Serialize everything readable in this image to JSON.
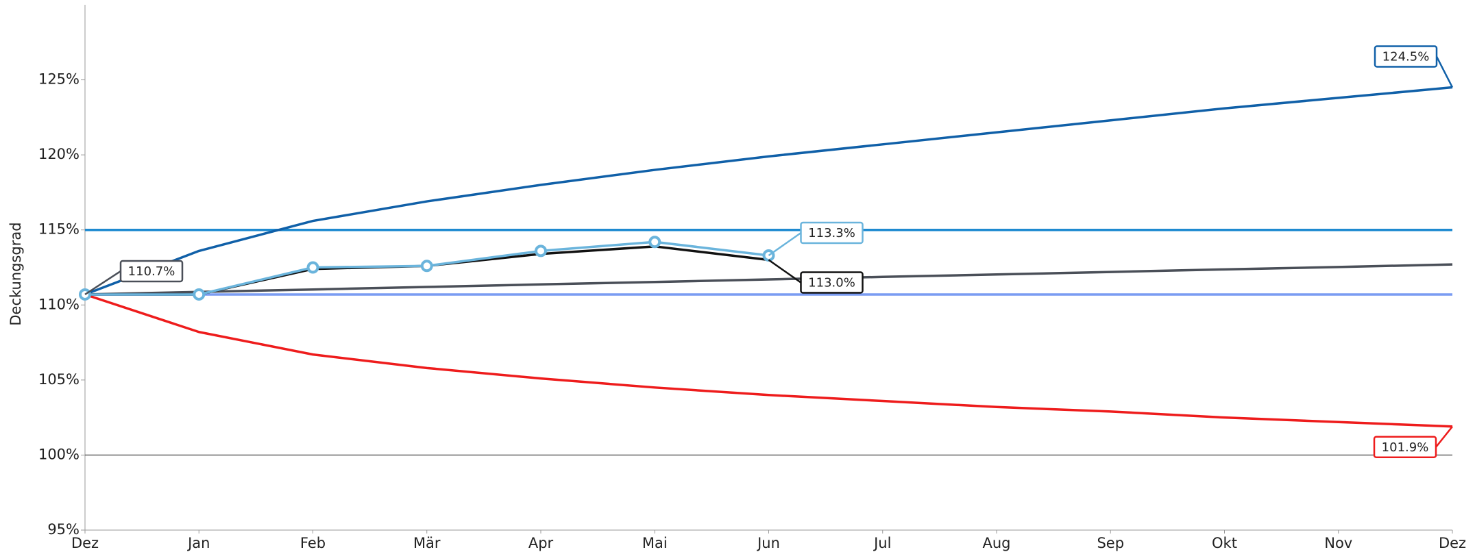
{
  "chart_data": {
    "type": "line",
    "y_label": "Deckungsgrad",
    "categories": [
      "Dez",
      "Jan",
      "Feb",
      "Mär",
      "Apr",
      "Mai",
      "Jun",
      "Jul",
      "Aug",
      "Sep",
      "Okt",
      "Nov",
      "Dez"
    ],
    "ylim": [
      95,
      130
    ],
    "yticks": [
      {
        "value": 95,
        "label": "95%"
      },
      {
        "value": 100,
        "label": "100%"
      },
      {
        "value": 105,
        "label": "105%"
      },
      {
        "value": 110,
        "label": "110%"
      },
      {
        "value": 115,
        "label": "115%"
      },
      {
        "value": 120,
        "label": "120%"
      },
      {
        "value": 125,
        "label": "125%"
      }
    ],
    "reference_lines": [
      {
        "value": 115,
        "color": "#1e8ad0"
      },
      {
        "value": 110.7,
        "color": "#7a9cf2"
      },
      {
        "value": 100,
        "color": "#555555"
      }
    ],
    "series": [
      {
        "color": "#1060a8",
        "values": [
          110.7,
          113.6,
          115.6,
          116.9,
          118.0,
          119.0,
          119.9,
          120.7,
          121.5,
          122.3,
          123.1,
          123.8,
          124.5
        ],
        "value_labels": [
          null,
          null,
          null,
          null,
          null,
          null,
          null,
          null,
          null,
          null,
          null,
          null,
          "124.5%"
        ]
      },
      {
        "color": "#ee1c1c",
        "values": [
          110.7,
          108.2,
          106.7,
          105.8,
          105.1,
          104.5,
          104.0,
          103.6,
          103.2,
          102.9,
          102.5,
          102.2,
          101.9
        ],
        "value_labels": [
          null,
          null,
          null,
          null,
          null,
          null,
          null,
          null,
          null,
          null,
          null,
          null,
          "101.9%"
        ]
      },
      {
        "color": "#4a4f58",
        "values": [
          110.7,
          110.87,
          111.03,
          111.2,
          111.37,
          111.53,
          111.7,
          111.87,
          112.03,
          112.2,
          112.37,
          112.53,
          112.7
        ],
        "value_labels": [
          "110.7%",
          null,
          null,
          null,
          null,
          null,
          null,
          null,
          null,
          null,
          null,
          null,
          null
        ]
      },
      {
        "color": "#111111",
        "values": [
          110.7,
          110.7,
          112.4,
          112.6,
          113.4,
          113.9,
          113.0,
          null,
          null,
          null,
          null,
          null,
          null
        ],
        "value_labels": [
          null,
          null,
          null,
          null,
          null,
          null,
          "113.0%",
          null,
          null,
          null,
          null,
          null,
          null
        ]
      },
      {
        "color": "#6ab4dc",
        "markers": true,
        "values": [
          110.7,
          110.7,
          112.5,
          112.6,
          113.6,
          114.2,
          113.3,
          null,
          null,
          null,
          null,
          null,
          null
        ],
        "value_labels": [
          null,
          null,
          null,
          null,
          null,
          null,
          "113.3%",
          null,
          null,
          null,
          null,
          null,
          null
        ]
      }
    ]
  }
}
